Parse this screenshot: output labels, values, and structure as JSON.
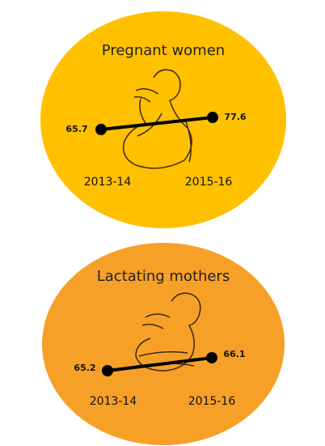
{
  "chart_data": [
    {
      "type": "line",
      "title": "Pregnant women",
      "categories": [
        "2013-14",
        "2015-16"
      ],
      "values": [
        65.7,
        77.6
      ],
      "color": "#000000"
    },
    {
      "type": "line",
      "title": "Lactating mothers",
      "categories": [
        "2013-14",
        "2015-16"
      ],
      "values": [
        65.2,
        66.1
      ],
      "color": "#000000"
    }
  ]
}
